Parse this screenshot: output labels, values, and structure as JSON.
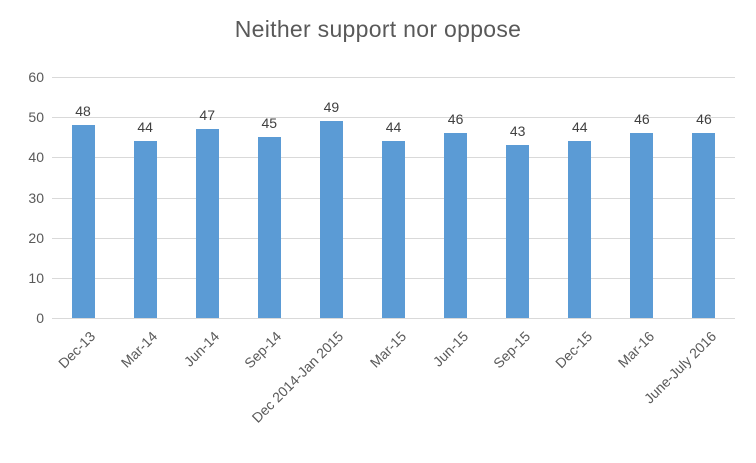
{
  "chart_data": {
    "type": "bar",
    "title": "Neither support nor oppose",
    "categories": [
      "Dec-13",
      "Mar-14",
      "Jun-14",
      "Sep-14",
      "Dec 2014-Jan 2015",
      "Mar-15",
      "Jun-15",
      "Sep-15",
      "Dec-15",
      "Mar-16",
      "June-July 2016"
    ],
    "values": [
      48,
      44,
      47,
      45,
      49,
      44,
      46,
      43,
      44,
      46,
      46
    ],
    "xlabel": "",
    "ylabel": "",
    "ylim": [
      0,
      60
    ],
    "yticks": [
      0,
      10,
      20,
      30,
      40,
      50,
      60
    ],
    "grid": "horizontal",
    "legend": "none",
    "data_labels": true,
    "colors": {
      "bar": "#5b9bd5",
      "gridline": "#d9d9d9",
      "axis_text": "#595959",
      "data_label_text": "#404040",
      "title_text": "#595959",
      "background": "#ffffff"
    }
  }
}
